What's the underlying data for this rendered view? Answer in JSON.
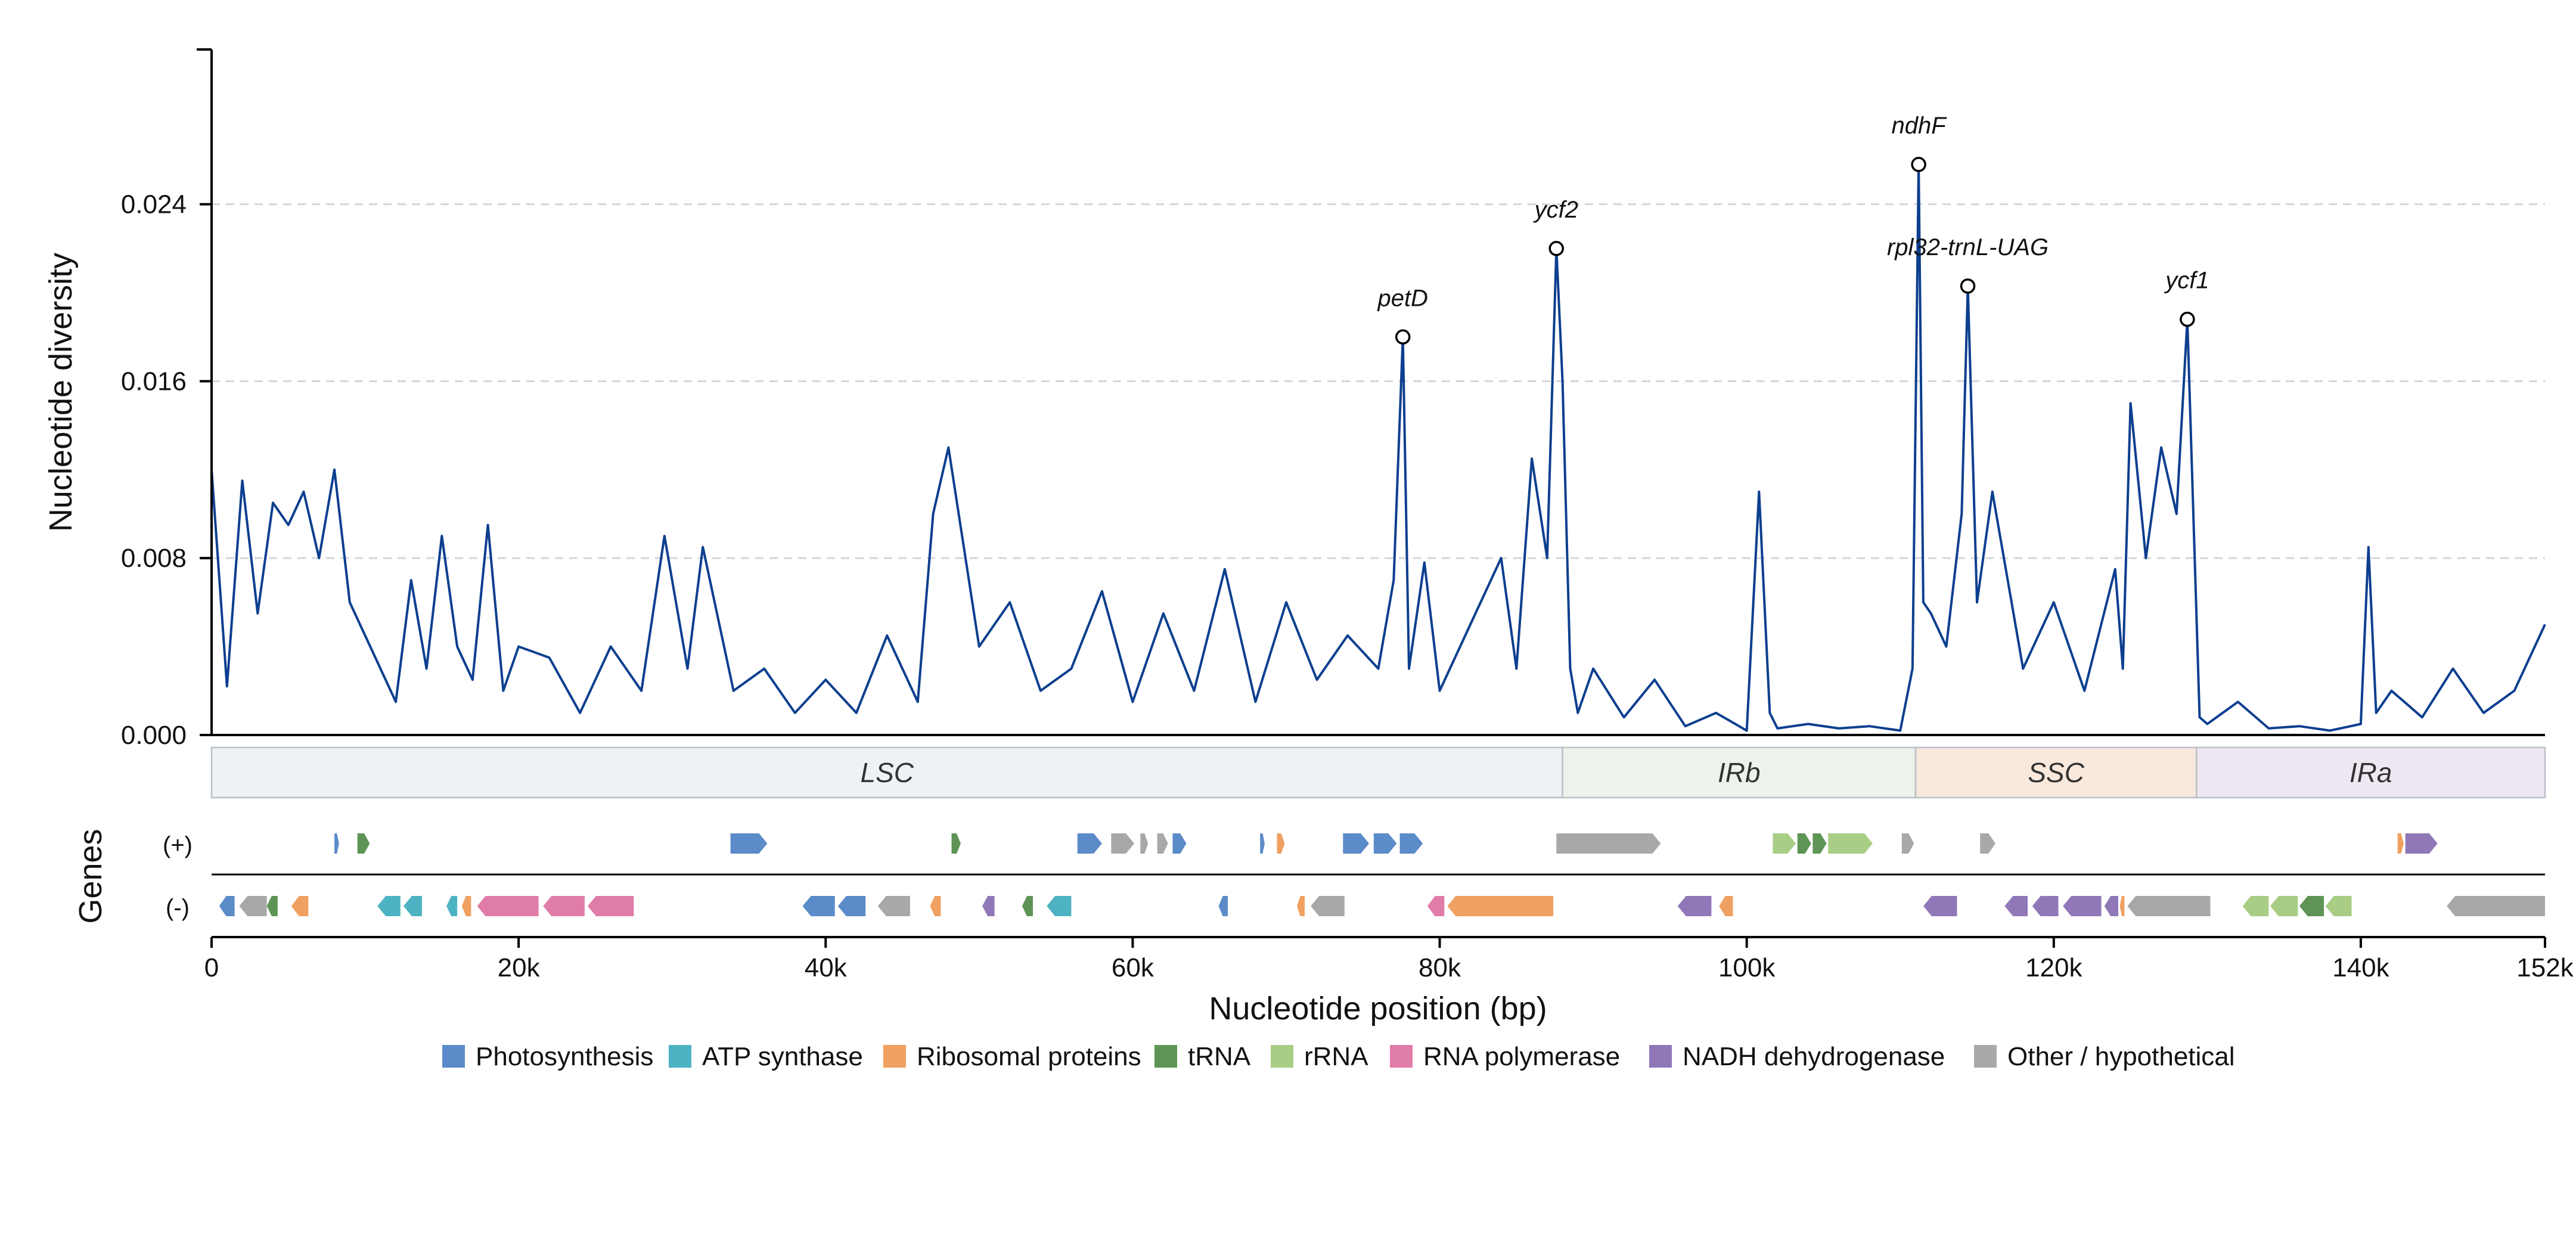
{
  "chart_data": {
    "type": "line",
    "title": "",
    "xlabel": "Nucleotide position (bp)",
    "ylabel": "Nucleotide diversity",
    "xlim": [
      0,
      152000
    ],
    "ylim": [
      0,
      0.031
    ],
    "y_ticks": [
      0.0,
      0.008,
      0.016,
      0.024
    ],
    "y_tick_labels": [
      "0.000",
      "0.008",
      "0.016",
      "0.024"
    ],
    "x_ticks": [
      0,
      20000,
      40000,
      60000,
      80000,
      100000,
      120000,
      140000,
      152000
    ],
    "x_tick_labels": [
      "0",
      "20k",
      "40k",
      "60k",
      "80k",
      "100k",
      "120k",
      "140k",
      "152k"
    ],
    "grid": "horizontal dashed",
    "line_color": "#0d3f8f",
    "series": [
      {
        "x": [
          0,
          1000,
          2000,
          3000,
          4000,
          5000,
          6000,
          7000,
          8000,
          9000,
          10000,
          12000,
          13000,
          14000,
          15000,
          16000,
          17000,
          18000,
          19000,
          20000,
          22000,
          24000,
          26000,
          28000,
          29500,
          31000,
          32000,
          34000,
          36000,
          38000,
          40000,
          42000,
          44000,
          46000,
          47000,
          48000,
          50000,
          52000,
          54000,
          56000,
          58000,
          60000,
          62000,
          64000,
          66000,
          68000,
          70000,
          72000,
          74000,
          76000,
          77000,
          77600,
          78000,
          79000,
          80000,
          82000,
          84000,
          85000,
          86000,
          87000,
          87600,
          88000,
          88500,
          89000,
          90000,
          92000,
          94000,
          96000,
          98000,
          100000,
          100800,
          101500,
          102000,
          104000,
          106000,
          108000,
          110000,
          110800,
          111200,
          111500,
          112000,
          113000,
          114000,
          114400,
          115000,
          116000,
          118000,
          120000,
          122000,
          124000,
          124500,
          125000,
          126000,
          127000,
          128000,
          128700,
          129500,
          130000,
          132000,
          134000,
          136000,
          138000,
          140000,
          140500,
          141000,
          142000,
          144000,
          146000,
          148000,
          150000,
          152000
        ],
        "y": [
          0.012,
          0.0022,
          0.0115,
          0.0055,
          0.0105,
          0.0095,
          0.011,
          0.008,
          0.012,
          0.006,
          0.0045,
          0.0015,
          0.007,
          0.003,
          0.009,
          0.004,
          0.0025,
          0.0095,
          0.002,
          0.004,
          0.0035,
          0.001,
          0.004,
          0.002,
          0.009,
          0.003,
          0.0085,
          0.002,
          0.003,
          0.001,
          0.0025,
          0.001,
          0.0045,
          0.0015,
          0.01,
          0.013,
          0.004,
          0.006,
          0.002,
          0.003,
          0.0065,
          0.0015,
          0.0055,
          0.002,
          0.0075,
          0.0015,
          0.006,
          0.0025,
          0.0045,
          0.003,
          0.007,
          0.018,
          0.003,
          0.0078,
          0.002,
          0.005,
          0.008,
          0.003,
          0.0125,
          0.008,
          0.022,
          0.016,
          0.003,
          0.001,
          0.003,
          0.0008,
          0.0025,
          0.0004,
          0.001,
          0.0002,
          0.011,
          0.001,
          0.0003,
          0.0005,
          0.0003,
          0.0004,
          0.0002,
          0.003,
          0.0258,
          0.006,
          0.0055,
          0.004,
          0.01,
          0.0203,
          0.006,
          0.011,
          0.003,
          0.006,
          0.002,
          0.0075,
          0.003,
          0.015,
          0.008,
          0.013,
          0.01,
          0.0188,
          0.0008,
          0.0005,
          0.0015,
          0.0003,
          0.0004,
          0.0002,
          0.0005,
          0.0085,
          0.001,
          0.002,
          0.0008,
          0.003,
          0.001,
          0.002,
          0.005
        ]
      }
    ],
    "annotations": [
      {
        "text": "petD",
        "x": 77600,
        "y": 0.018
      },
      {
        "text": "ycf2",
        "x": 87600,
        "y": 0.022
      },
      {
        "text": "ndhF",
        "x": 111200,
        "y": 0.0258
      },
      {
        "text": "rpl32-trnL-UAG",
        "x": 114400,
        "y": 0.0203
      },
      {
        "text": "ycf1",
        "x": 128700,
        "y": 0.0188
      }
    ],
    "regions": [
      {
        "name": "LSC",
        "start": 0,
        "end": 88000,
        "color": "#eef2f6"
      },
      {
        "name": "IRb",
        "start": 88000,
        "end": 111000,
        "color": "#edf3ea"
      },
      {
        "name": "SSC",
        "start": 111000,
        "end": 129300,
        "color": "#f9e9dc"
      },
      {
        "name": "IRa",
        "start": 129300,
        "end": 152000,
        "color": "#efe7f1"
      }
    ],
    "genes_axis_label": "Genes",
    "strand_labels": [
      "(+)",
      "(-)"
    ],
    "categories": [
      {
        "name": "Photosynthesis",
        "color": "#5b8bc9"
      },
      {
        "name": "ATP synthase",
        "color": "#4db3c2"
      },
      {
        "name": "Ribosomal proteins",
        "color": "#f0a060"
      },
      {
        "name": "tRNA",
        "color": "#5e9455"
      },
      {
        "name": "rRNA",
        "color": "#a8cd84"
      },
      {
        "name": "RNA polymerase",
        "color": "#e07ca8"
      },
      {
        "name": "NADH dehydrogenase",
        "color": "#9078b8"
      },
      {
        "name": "Other / hypothetical",
        "color": "#a8a8a8"
      }
    ],
    "genes": [
      {
        "strand": "+",
        "start": 8000,
        "end": 8300,
        "category": "Photosynthesis"
      },
      {
        "strand": "+",
        "start": 9500,
        "end": 10300,
        "category": "tRNA"
      },
      {
        "strand": "+",
        "start": 33800,
        "end": 36200,
        "category": "Photosynthesis"
      },
      {
        "strand": "+",
        "start": 48200,
        "end": 48800,
        "category": "tRNA"
      },
      {
        "strand": "+",
        "start": 56400,
        "end": 58000,
        "category": "Photosynthesis"
      },
      {
        "strand": "+",
        "start": 58600,
        "end": 60100,
        "category": "Other / hypothetical"
      },
      {
        "strand": "+",
        "start": 60500,
        "end": 61000,
        "category": "Other / hypothetical"
      },
      {
        "strand": "+",
        "start": 61600,
        "end": 62300,
        "category": "Other / hypothetical"
      },
      {
        "strand": "+",
        "start": 62600,
        "end": 63500,
        "category": "Photosynthesis"
      },
      {
        "strand": "+",
        "start": 68300,
        "end": 68600,
        "category": "Photosynthesis"
      },
      {
        "strand": "+",
        "start": 69400,
        "end": 69900,
        "category": "Ribosomal proteins"
      },
      {
        "strand": "+",
        "start": 73700,
        "end": 75400,
        "category": "Photosynthesis"
      },
      {
        "strand": "+",
        "start": 75700,
        "end": 77200,
        "category": "Photosynthesis"
      },
      {
        "strand": "+",
        "start": 77400,
        "end": 78900,
        "category": "Photosynthesis"
      },
      {
        "strand": "+",
        "start": 87600,
        "end": 94400,
        "category": "Other / hypothetical"
      },
      {
        "strand": "+",
        "start": 101700,
        "end": 103200,
        "category": "rRNA"
      },
      {
        "strand": "+",
        "start": 103300,
        "end": 104200,
        "category": "tRNA"
      },
      {
        "strand": "+",
        "start": 104300,
        "end": 105200,
        "category": "tRNA"
      },
      {
        "strand": "+",
        "start": 105300,
        "end": 108200,
        "category": "rRNA"
      },
      {
        "strand": "+",
        "start": 110100,
        "end": 110900,
        "category": "Other / hypothetical"
      },
      {
        "strand": "+",
        "start": 115200,
        "end": 116200,
        "category": "Other / hypothetical"
      },
      {
        "strand": "+",
        "start": 142400,
        "end": 142800,
        "category": "Ribosomal proteins"
      },
      {
        "strand": "+",
        "start": 142900,
        "end": 145000,
        "category": "NADH dehydrogenase"
      },
      {
        "strand": "-",
        "start": 500,
        "end": 1500,
        "category": "Photosynthesis"
      },
      {
        "strand": "-",
        "start": 1800,
        "end": 3600,
        "category": "Other / hypothetical"
      },
      {
        "strand": "-",
        "start": 3600,
        "end": 4300,
        "category": "tRNA"
      },
      {
        "strand": "-",
        "start": 5200,
        "end": 6300,
        "category": "Ribosomal proteins"
      },
      {
        "strand": "-",
        "start": 10800,
        "end": 12300,
        "category": "ATP synthase"
      },
      {
        "strand": "-",
        "start": 12500,
        "end": 13700,
        "category": "ATP synthase"
      },
      {
        "strand": "-",
        "start": 15300,
        "end": 16000,
        "category": "ATP synthase"
      },
      {
        "strand": "-",
        "start": 16300,
        "end": 16900,
        "category": "Ribosomal proteins"
      },
      {
        "strand": "-",
        "start": 17300,
        "end": 21300,
        "category": "RNA polymerase"
      },
      {
        "strand": "-",
        "start": 21600,
        "end": 24300,
        "category": "RNA polymerase"
      },
      {
        "strand": "-",
        "start": 24500,
        "end": 27500,
        "category": "RNA polymerase"
      },
      {
        "strand": "-",
        "start": 38500,
        "end": 40600,
        "category": "Photosynthesis"
      },
      {
        "strand": "-",
        "start": 40800,
        "end": 42600,
        "category": "Photosynthesis"
      },
      {
        "strand": "-",
        "start": 43400,
        "end": 45500,
        "category": "Other / hypothetical"
      },
      {
        "strand": "-",
        "start": 46800,
        "end": 47500,
        "category": "Ribosomal proteins"
      },
      {
        "strand": "-",
        "start": 50200,
        "end": 51000,
        "category": "NADH dehydrogenase"
      },
      {
        "strand": "-",
        "start": 52800,
        "end": 53500,
        "category": "tRNA"
      },
      {
        "strand": "-",
        "start": 54400,
        "end": 56000,
        "category": "ATP synthase"
      },
      {
        "strand": "-",
        "start": 65600,
        "end": 66200,
        "category": "Photosynthesis"
      },
      {
        "strand": "-",
        "start": 70700,
        "end": 71200,
        "category": "Ribosomal proteins"
      },
      {
        "strand": "-",
        "start": 71600,
        "end": 73800,
        "category": "Other / hypothetical"
      },
      {
        "strand": "-",
        "start": 79200,
        "end": 80300,
        "category": "RNA polymerase"
      },
      {
        "strand": "-",
        "start": 80500,
        "end": 87400,
        "category": "Ribosomal proteins"
      },
      {
        "strand": "-",
        "start": 95500,
        "end": 97700,
        "category": "NADH dehydrogenase"
      },
      {
        "strand": "-",
        "start": 98200,
        "end": 99100,
        "category": "Ribosomal proteins"
      },
      {
        "strand": "-",
        "start": 111500,
        "end": 113700,
        "category": "NADH dehydrogenase"
      },
      {
        "strand": "-",
        "start": 116800,
        "end": 118300,
        "category": "NADH dehydrogenase"
      },
      {
        "strand": "-",
        "start": 118600,
        "end": 120300,
        "category": "NADH dehydrogenase"
      },
      {
        "strand": "-",
        "start": 120600,
        "end": 123100,
        "category": "NADH dehydrogenase"
      },
      {
        "strand": "-",
        "start": 123300,
        "end": 124200,
        "category": "NADH dehydrogenase"
      },
      {
        "strand": "-",
        "start": 124300,
        "end": 124600,
        "category": "Ribosomal proteins"
      },
      {
        "strand": "-",
        "start": 124800,
        "end": 130200,
        "category": "Other / hypothetical"
      },
      {
        "strand": "-",
        "start": 132300,
        "end": 134000,
        "category": "rRNA"
      },
      {
        "strand": "-",
        "start": 134100,
        "end": 135900,
        "category": "rRNA"
      },
      {
        "strand": "-",
        "start": 136000,
        "end": 137600,
        "category": "tRNA"
      },
      {
        "strand": "-",
        "start": 137700,
        "end": 139400,
        "category": "rRNA"
      },
      {
        "strand": "-",
        "start": 145600,
        "end": 152000,
        "category": "Other / hypothetical"
      }
    ]
  }
}
